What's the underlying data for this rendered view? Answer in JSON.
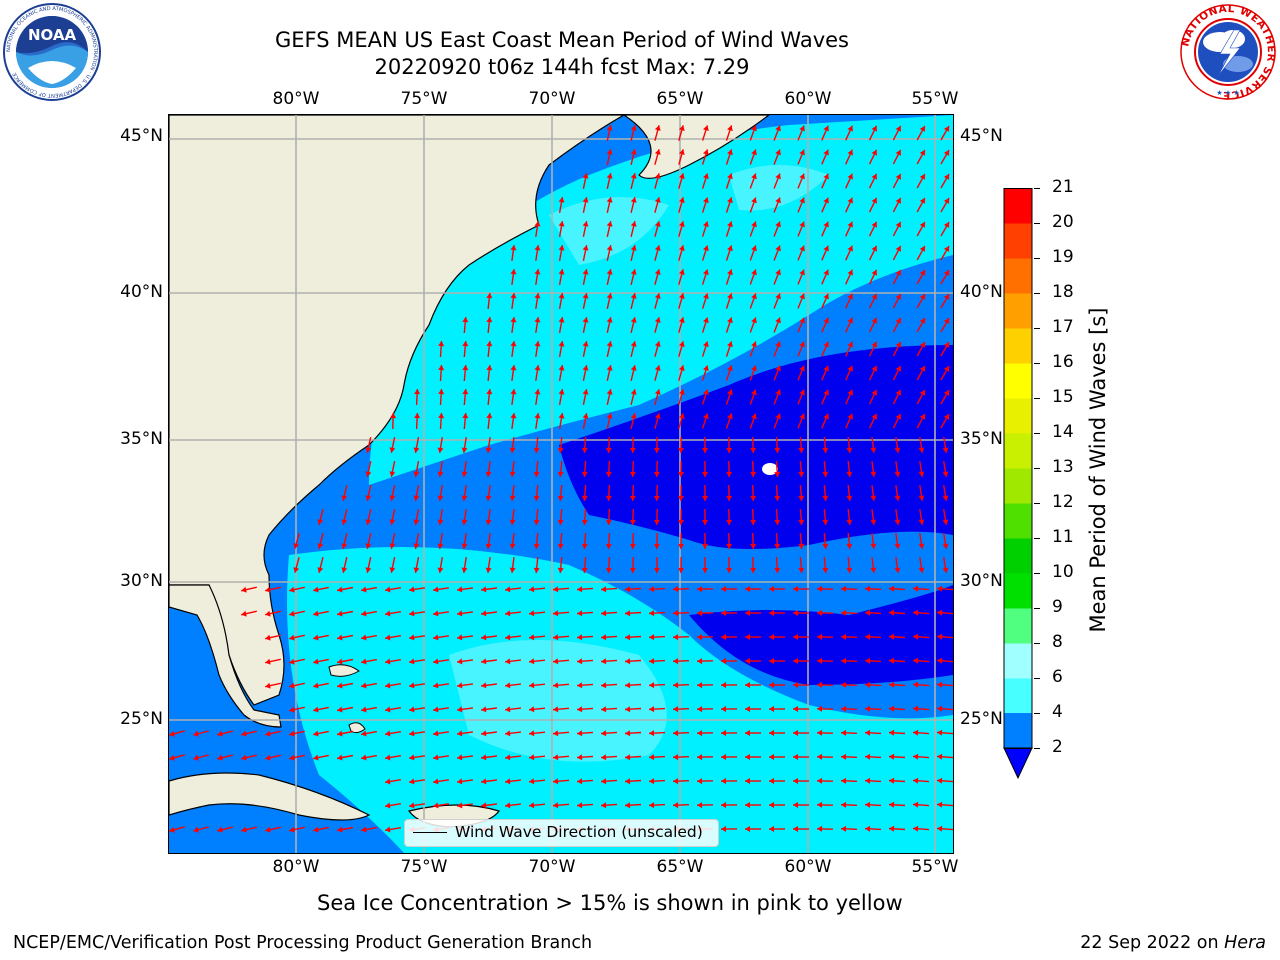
{
  "header": {
    "title_line1": "GEFS MEAN US East Coast Mean Period of Wind Waves",
    "title_line2": "20220920 t06z 144h fcst   Max: 7.29"
  },
  "logos": {
    "left": {
      "icon": "noaa-logo-icon",
      "text": "NOAA",
      "ring_text": "NATIONAL OCEANIC AND ATMOSPHERIC ADMINISTRATION · U.S. DEPARTMENT OF COMMERCE"
    },
    "right": {
      "icon": "nws-logo-icon",
      "ring_text": "NATIONAL WEATHER SERVICE"
    }
  },
  "map": {
    "lon_labels": [
      "80°W",
      "75°W",
      "70°W",
      "65°W",
      "60°W",
      "55°W"
    ],
    "lat_labels": [
      "45°N",
      "40°N",
      "35°N",
      "30°N",
      "25°N"
    ],
    "extent": {
      "lon_min": -85,
      "lon_max": -54.3,
      "lat_min": 20.5,
      "lat_max": 45.8
    },
    "land_color": "#efeedd",
    "grid_color": "#b0b0b0",
    "arrow_color": "#ff0000",
    "legend_label": "Wind Wave Direction (unscaled)"
  },
  "colorbar": {
    "title": "Mean Period of Wind Waves [s]",
    "tick_labels": [
      "2",
      "4",
      "6",
      "8",
      "9",
      "10",
      "11",
      "12",
      "13",
      "14",
      "15",
      "16",
      "17",
      "18",
      "19",
      "20",
      "21"
    ],
    "colors": [
      "#0080ff",
      "#00e8ff",
      "#48ffff",
      "#a0ffff",
      "#50ff80",
      "#00e000",
      "#00d000",
      "#50e000",
      "#a0e800",
      "#c8f000",
      "#e8f000",
      "#ffff00",
      "#ffd000",
      "#ffa000",
      "#ff7000",
      "#ff4000",
      "#ff0000"
    ],
    "under_color": "#0000ff"
  },
  "notes": {
    "sea_ice": "Sea Ice Concentration > 15% is shown in pink to yellow",
    "org": "NCEP/EMC/Verification Post Processing Product Generation Branch",
    "date": "22 Sep 2022 on ",
    "machine": "Hera"
  }
}
